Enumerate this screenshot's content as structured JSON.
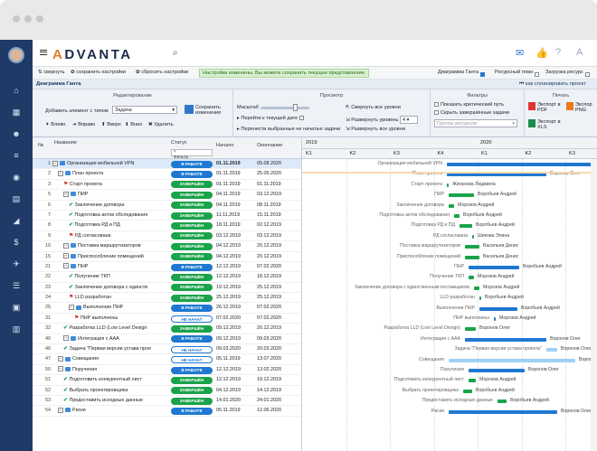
{
  "app": {
    "logo": "ADVANTA"
  },
  "toolbar": {
    "collapse": "свернуть",
    "save_settings": "сохранить настройки",
    "reset_settings": "сбросить настройки",
    "notice": "Настройки изменены. Вы можете сохранить текущее представление.",
    "gantt_label": "Диаграмма Ганта",
    "resource_plan": "Ресурсный план",
    "resource_load": "Загрузка ресурс"
  },
  "title": {
    "left": "Диаграмма Ганта",
    "right": "как спланировать проект"
  },
  "ribbon": {
    "edit_header": "Редактирование",
    "add_element_label": "Добавить элемент с типом",
    "add_element_value": "Задача",
    "save_changes": "Сохранить изменения",
    "left": "Влево",
    "right": "Вправо",
    "up": "Вверх",
    "down": "Вниз",
    "delete": "Удалить",
    "view_header": "Просмотр",
    "scale": "Масштаб",
    "goto_date": "Перейти к текущей дате",
    "move_unstarted": "Перенести выбранные не начатые задачи",
    "collapse_all": "Свернуть все уровни",
    "expand_level": "Развернуть уровень",
    "expand_level_value": "4",
    "expand_all": "Развернуть все уровни",
    "filters_header": "Фильтры",
    "show_critical": "Показать критический путь",
    "hide_done": "Скрыть завершённые задачи",
    "resource_groups": "Группы ресурсов",
    "print_header": "Печать",
    "export_pdf": "Экспорт в PDF",
    "export_png": "Экспор PNG",
    "export_xls": "Экспорт в XLS"
  },
  "columns": {
    "id": "№",
    "name": "Название",
    "status": "Статус",
    "status_filter": "Фильтр",
    "start": "Начало",
    "end": "Окончание"
  },
  "timeline": {
    "years": [
      "2019",
      "2020"
    ],
    "quarters": [
      "K1",
      "K2",
      "K3",
      "K4",
      "K1",
      "K2",
      "K3"
    ]
  },
  "rows": [
    {
      "id": "1",
      "name": "Организация мобильной VPN",
      "status": "В РАБОТЕ",
      "start": "01.11.2019",
      "end": "05.08.2020",
      "icon": "folder"
    },
    {
      "id": "2",
      "name": "План проекта",
      "status": "В РАБОТЕ",
      "start": "01.11.2019",
      "end": "25.05.2020",
      "icon": "folder"
    },
    {
      "id": "3",
      "name": "Старт проекта",
      "status": "ЗАВЕРШЁН",
      "start": "01.11.2019",
      "end": "01.11.2019",
      "icon": "flag"
    },
    {
      "id": "5",
      "name": "ПИР",
      "status": "ЗАВЕРШЁН",
      "start": "04.11.2019",
      "end": "03.12.2019",
      "icon": "folder"
    },
    {
      "id": "6",
      "name": "Заключение договора",
      "status": "ЗАВЕРШЁН",
      "start": "04.11.2019",
      "end": "08.11.2019",
      "icon": "check"
    },
    {
      "id": "7",
      "name": "Подготовка актов обследования",
      "status": "ЗАВЕРШЁН",
      "start": "11.11.2019",
      "end": "15.11.2019",
      "icon": "check"
    },
    {
      "id": "8",
      "name": "Подготовка РД и ПД",
      "status": "ЗАВЕРШЁН",
      "start": "18.11.2019",
      "end": "02.12.2019",
      "icon": "check"
    },
    {
      "id": "9",
      "name": "РД согласована",
      "status": "ЗАВЕРШЁН",
      "start": "03.12.2019",
      "end": "03.12.2019",
      "icon": "flag"
    },
    {
      "id": "10",
      "name": "Поставка маршрутизаторов",
      "status": "ЗАВЕРШЁН",
      "start": "04.12.2019",
      "end": "20.12.2019",
      "icon": "folder"
    },
    {
      "id": "15",
      "name": "Приспособление помещений",
      "status": "ЗАВЕРШЁН",
      "start": "04.12.2019",
      "end": "20.12.2019",
      "icon": "folder"
    },
    {
      "id": "21",
      "name": "ПНР",
      "status": "В РАБОТЕ",
      "start": "12.12.2019",
      "end": "07.02.2020",
      "icon": "folder"
    },
    {
      "id": "22",
      "name": "Получение ТКП",
      "status": "ЗАВЕРШЁН",
      "start": "12.12.2019",
      "end": "18.12.2019",
      "icon": "check"
    },
    {
      "id": "23",
      "name": "Заключение договора с единств",
      "status": "ЗАВЕРШЁН",
      "start": "19.12.2019",
      "end": "25.12.2019",
      "icon": "check"
    },
    {
      "id": "24",
      "name": "LLD разработан",
      "status": "ЗАВЕРШЁН",
      "start": "25.12.2019",
      "end": "25.12.2019",
      "icon": "flag"
    },
    {
      "id": "25",
      "name": "Выполнение ПНР",
      "status": "В РАБОТЕ",
      "start": "26.12.2019",
      "end": "07.02.2020",
      "icon": "folder"
    },
    {
      "id": "31",
      "name": "ПНР выполнены",
      "status": "НЕ НАЧАТ",
      "start": "07.02.2020",
      "end": "07.02.2020",
      "icon": "flag"
    },
    {
      "id": "32",
      "name": "Разработка LLD (Low Level Design",
      "status": "ЗАВЕРШЁН",
      "start": "09.12.2019",
      "end": "20.12.2019",
      "icon": "check"
    },
    {
      "id": "40",
      "name": "Интеграция с ААА",
      "status": "В РАБОТЕ",
      "start": "09.12.2019",
      "end": "09.03.2020",
      "icon": "folder"
    },
    {
      "id": "46",
      "name": "Задача \"Первая версии устава прое",
      "status": "НЕ НАЧАТ",
      "start": "09.03.2020",
      "end": "20.03.2020",
      "icon": "check"
    },
    {
      "id": "47",
      "name": "Совещания",
      "status": "НЕ НАЧАТ",
      "start": "05.11.2019",
      "end": "13.07.2020",
      "icon": "folder"
    },
    {
      "id": "50",
      "name": "Поручения",
      "status": "В РАБОТЕ",
      "start": "12.12.2019",
      "end": "13.02.2020",
      "icon": "folder"
    },
    {
      "id": "51",
      "name": "Подготовить конкурентный лист",
      "status": "ЗАВЕРШЁН",
      "start": "12.12.2019",
      "end": "19.12.2019",
      "icon": "check"
    },
    {
      "id": "52",
      "name": "Выбрать проектировщика",
      "status": "ЗАВЕРШЁН",
      "start": "04.12.2019",
      "end": "14.12.2019",
      "icon": "check"
    },
    {
      "id": "53",
      "name": "Предоставить исходные данные",
      "status": "ЗАВЕРШЁН",
      "start": "14.01.2020",
      "end": "24.01.2020",
      "icon": "check"
    },
    {
      "id": "54",
      "name": "Риски",
      "status": "В РАБОТЕ",
      "start": "05.11.2019",
      "end": "12.06.2020",
      "icon": "folder"
    }
  ],
  "gantt_labels": [
    {
      "task": "Организация мобильной VPN",
      "person": ""
    },
    {
      "task": "План проекта",
      "person": "Воронов Олег"
    },
    {
      "task": "Старт проекта",
      "person": "Жиганова Людмила"
    },
    {
      "task": "ПИР",
      "person": "Воробьев Андрей"
    },
    {
      "task": "Заключение договора",
      "person": "Морозов Андрей"
    },
    {
      "task": "Подготовка актов обследования",
      "person": "Воробьев Андрей"
    },
    {
      "task": "Подготовка РД и ПД",
      "person": "Воробьев Андрей"
    },
    {
      "task": "РД согласована",
      "person": "Шикова Элина"
    },
    {
      "task": "Поставка маршрутизаторов",
      "person": "Васильев Денис"
    },
    {
      "task": "Приспособление помещений",
      "person": "Васильев Денис"
    },
    {
      "task": "ПНР",
      "person": "Воробьев Андрей"
    },
    {
      "task": "Получение ТКП",
      "person": "Морозов Андрей"
    },
    {
      "task": "Заключение договора с единственным поставщиком",
      "person": "Морозов Андрей"
    },
    {
      "task": "LLD разработан",
      "person": "Воробьев Андрей"
    },
    {
      "task": "Выполнение ПНР",
      "person": "Воробьев Андрей"
    },
    {
      "task": "ПНР выполнены",
      "person": "Морозов Андрей"
    },
    {
      "task": "Разработка LLD (Low Level Design)",
      "person": "Воронов Олег"
    },
    {
      "task": "Интеграция с ААА",
      "person": "Воронов Олег"
    },
    {
      "task": "Задача \"Первая версии устава проекта\"",
      "person": "Воронов Олег"
    },
    {
      "task": "Совещания",
      "person": "Воронов Олег"
    },
    {
      "task": "Поручения",
      "person": "Воронов Олег"
    },
    {
      "task": "Подготовить конкурентный лист",
      "person": "Морозов Андрей"
    },
    {
      "task": "Выбрать проектировщика",
      "person": "Воробьев Андрей"
    },
    {
      "task": "Предоставить исходные данные",
      "person": "Воробьев Андрей"
    },
    {
      "task": "Риски",
      "person": "Воронов Олег"
    }
  ],
  "colors": {
    "accent": "#1f78d1",
    "done": "#1aa34a",
    "sidebar": "#1f3a66"
  }
}
